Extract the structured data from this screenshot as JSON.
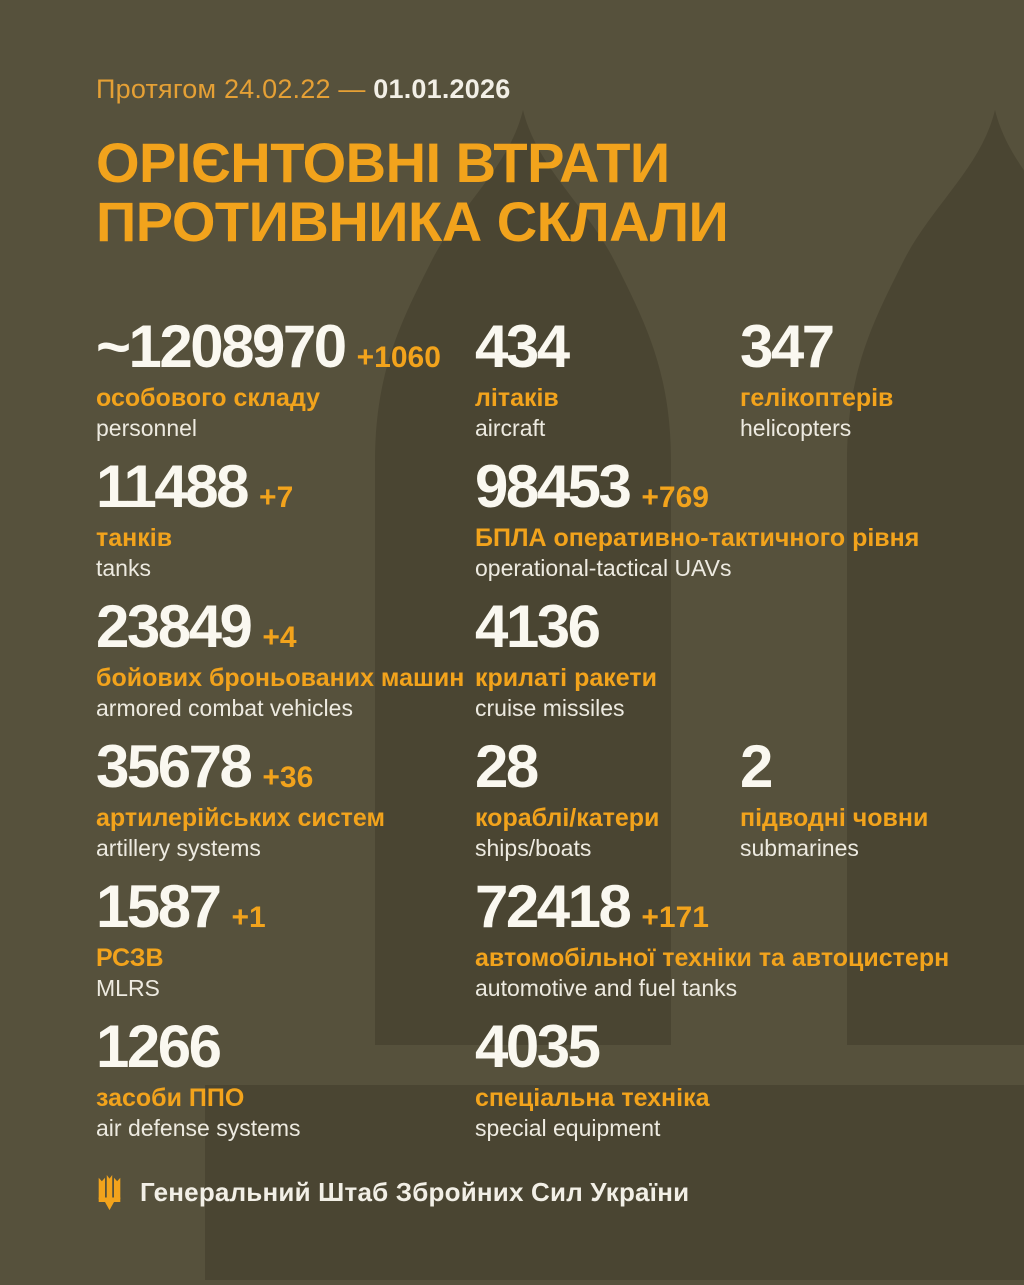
{
  "colors": {
    "background": "#56513C",
    "watermark": "#4A4532",
    "accent": "#F2A31C",
    "accent_dim": "#E5A035",
    "number_white": "#FAF8F0",
    "english_label": "#EDEAE0",
    "white": "#F2EFE6"
  },
  "header": {
    "period_label": "Протягом 24.02.22 —",
    "period_end_date": "01.01.2026",
    "title_line_1": "ОРІЄНТОВНІ ВТРАТИ",
    "title_line_2": "ПРОТИВНИКА СКЛАЛИ"
  },
  "stats": {
    "rows": [
      {
        "cells": [
          {
            "value": "~1208970",
            "delta": "+1060",
            "ua": "особового складу",
            "en": "personnel"
          },
          {
            "value": "434",
            "ua": "літаків",
            "en": "aircraft"
          },
          {
            "value": "347",
            "ua": "гелікоптерів",
            "en": "helicopters"
          }
        ]
      },
      {
        "cells": [
          {
            "value": "11488",
            "delta": "+7",
            "ua": "танків",
            "en": "tanks"
          },
          {
            "value": "98453",
            "delta": "+769",
            "ua": "БПЛА оперативно-тактичного рівня",
            "en": "operational-tactical UAVs"
          }
        ]
      },
      {
        "cells": [
          {
            "value": "23849",
            "delta": "+4",
            "ua": "бойових броньованих машин",
            "en": "armored combat vehicles"
          },
          {
            "value": "4136",
            "ua": "крилаті ракети",
            "en": "cruise missiles"
          }
        ]
      },
      {
        "cells": [
          {
            "value": "35678",
            "delta": "+36",
            "ua": "артилерійських систем",
            "en": "artillery systems"
          },
          {
            "value": "28",
            "ua": "кораблі/катери",
            "en": "ships/boats"
          },
          {
            "value": "2",
            "ua": "підводні човни",
            "en": "submarines"
          }
        ]
      },
      {
        "cells": [
          {
            "value": "1587",
            "delta": "+1",
            "ua": "РСЗВ",
            "en": "MLRS"
          },
          {
            "value": "72418",
            "delta": "+171",
            "ua": "автомобільної техніки та автоцистерн",
            "en": "automotive and fuel tanks"
          }
        ]
      },
      {
        "cells": [
          {
            "value": "1266",
            "ua": "засоби ППО",
            "en": "air defense systems"
          },
          {
            "value": "4035",
            "ua": "спеціальна техніка",
            "en": "special equipment"
          }
        ]
      }
    ]
  },
  "footer": {
    "icon": "trident-icon",
    "organization": "Генеральний Штаб Збройних Сил України"
  },
  "chart_data": {
    "type": "table",
    "title": "Орієнтовні втрати противника склали",
    "period": "24.02.22 — 01.01.2026",
    "source": "Генеральний Штаб Збройних Сил України",
    "items": [
      {
        "label_ua": "особового складу",
        "label_en": "personnel",
        "value": 1208970,
        "approx": true,
        "delta": 1060
      },
      {
        "label_ua": "літаків",
        "label_en": "aircraft",
        "value": 434
      },
      {
        "label_ua": "гелікоптерів",
        "label_en": "helicopters",
        "value": 347
      },
      {
        "label_ua": "танків",
        "label_en": "tanks",
        "value": 11488,
        "delta": 7
      },
      {
        "label_ua": "БПЛА оперативно-тактичного рівня",
        "label_en": "operational-tactical UAVs",
        "value": 98453,
        "delta": 769
      },
      {
        "label_ua": "бойових броньованих машин",
        "label_en": "armored combat vehicles",
        "value": 23849,
        "delta": 4
      },
      {
        "label_ua": "крилаті ракети",
        "label_en": "cruise missiles",
        "value": 4136
      },
      {
        "label_ua": "артилерійських систем",
        "label_en": "artillery systems",
        "value": 35678,
        "delta": 36
      },
      {
        "label_ua": "кораблі/катери",
        "label_en": "ships/boats",
        "value": 28
      },
      {
        "label_ua": "підводні човни",
        "label_en": "submarines",
        "value": 2
      },
      {
        "label_ua": "РСЗВ",
        "label_en": "MLRS",
        "value": 1587,
        "delta": 1
      },
      {
        "label_ua": "автомобільної техніки та автоцистерн",
        "label_en": "automotive and fuel tanks",
        "value": 72418,
        "delta": 171
      },
      {
        "label_ua": "засоби ППО",
        "label_en": "air defense systems",
        "value": 1266
      },
      {
        "label_ua": "спеціальна техніка",
        "label_en": "special equipment",
        "value": 4035
      }
    ]
  }
}
